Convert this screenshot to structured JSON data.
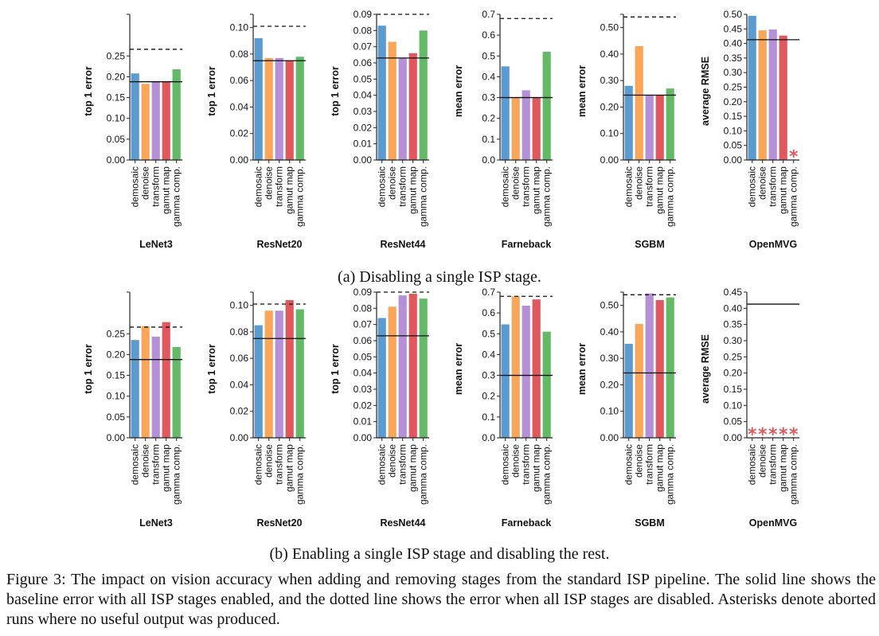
{
  "figure": {
    "caption_a": "(a) Disabling a single ISP stage.",
    "caption_b": "(b) Enabling a single ISP stage and disabling the rest.",
    "caption_main": "Figure 3: The impact on vision accuracy when adding and removing stages from the standard ISP pipeline. The solid line shows the baseline error with all ISP stages enabled, and the dotted line shows the error when all ISP stages are disabled. Asterisks denote aborted runs where no useful output was produced."
  },
  "colors": [
    "#5b9bd0",
    "#f9a65a",
    "#b590d6",
    "#e0585e",
    "#64b966"
  ],
  "categories": [
    "demosaic",
    "denoise",
    "transform",
    "gamut map",
    "gamma comp."
  ],
  "asterisk_symbol": "*",
  "chart_data": [
    {
      "row": "a",
      "type": "bar",
      "title": "LeNet3",
      "ylabel": "top 1 error",
      "ylim": [
        0,
        0.35
      ],
      "yticks": [
        "0.00",
        "0.05",
        "0.10",
        "0.15",
        "0.20",
        "0.25"
      ],
      "categories": [
        "demosaic",
        "denoise",
        "transform",
        "gamut map",
        "gamma comp."
      ],
      "values": [
        0.208,
        0.183,
        0.188,
        0.188,
        0.218
      ],
      "aborted": [
        false,
        false,
        false,
        false,
        false
      ],
      "baseline": 0.188,
      "all_disabled": 0.266
    },
    {
      "row": "a",
      "type": "bar",
      "title": "ResNet20",
      "ylabel": "top 1 error",
      "ylim": [
        0,
        0.11
      ],
      "yticks": [
        "0.00",
        "0.02",
        "0.04",
        "0.06",
        "0.08",
        "0.10"
      ],
      "categories": [
        "demosaic",
        "denoise",
        "transform",
        "gamut map",
        "gamma comp."
      ],
      "values": [
        0.092,
        0.077,
        0.077,
        0.075,
        0.078
      ],
      "aborted": [
        false,
        false,
        false,
        false,
        false
      ],
      "baseline": 0.075,
      "all_disabled": 0.101
    },
    {
      "row": "a",
      "type": "bar",
      "title": "ResNet44",
      "ylabel": "top 1 error",
      "ylim": [
        0,
        0.09
      ],
      "yticks": [
        "0.00",
        "0.01",
        "0.02",
        "0.03",
        "0.04",
        "0.05",
        "0.06",
        "0.07",
        "0.08",
        "0.09"
      ],
      "categories": [
        "demosaic",
        "denoise",
        "transform",
        "gamut map",
        "gamma comp."
      ],
      "values": [
        0.083,
        0.073,
        0.063,
        0.066,
        0.08
      ],
      "aborted": [
        false,
        false,
        false,
        false,
        false
      ],
      "baseline": 0.063,
      "all_disabled": 0.09
    },
    {
      "row": "a",
      "type": "bar",
      "title": "Farneback",
      "ylabel": "mean error",
      "ylim": [
        0,
        0.7
      ],
      "yticks": [
        "0.0",
        "0.1",
        "0.2",
        "0.3",
        "0.4",
        "0.5",
        "0.6",
        "0.7"
      ],
      "categories": [
        "demosaic",
        "denoise",
        "transform",
        "gamut map",
        "gamma comp."
      ],
      "values": [
        0.45,
        0.3,
        0.335,
        0.3,
        0.52
      ],
      "aborted": [
        false,
        false,
        false,
        false,
        false
      ],
      "baseline": 0.3,
      "all_disabled": 0.68
    },
    {
      "row": "a",
      "type": "bar",
      "title": "SGBM",
      "ylabel": "mean error",
      "ylim": [
        0,
        0.55
      ],
      "yticks": [
        "0.00",
        "0.10",
        "0.20",
        "0.30",
        "0.40",
        "0.50"
      ],
      "categories": [
        "demosaic",
        "denoise",
        "transform",
        "gamut map",
        "gamma comp."
      ],
      "values": [
        0.28,
        0.43,
        0.245,
        0.245,
        0.27
      ],
      "aborted": [
        false,
        false,
        false,
        false,
        false
      ],
      "baseline": 0.245,
      "all_disabled": 0.54
    },
    {
      "row": "a",
      "type": "bar",
      "title": "OpenMVG",
      "ylabel": "average RMSE",
      "ylim": [
        0,
        0.5
      ],
      "yticks": [
        "0.00",
        "0.05",
        "0.10",
        "0.15",
        "0.20",
        "0.25",
        "0.30",
        "0.35",
        "0.40",
        "0.45",
        "0.50"
      ],
      "categories": [
        "demosaic",
        "denoise",
        "transform",
        "gamut map",
        "gamma comp."
      ],
      "values": [
        0.495,
        0.445,
        0.448,
        0.427,
        0
      ],
      "aborted": [
        false,
        false,
        false,
        false,
        true
      ],
      "baseline": 0.413,
      "all_disabled": null
    },
    {
      "row": "b",
      "type": "bar",
      "title": "LeNet3",
      "ylabel": "top 1 error",
      "ylim": [
        0,
        0.35
      ],
      "yticks": [
        "0.00",
        "0.05",
        "0.10",
        "0.15",
        "0.20",
        "0.25"
      ],
      "categories": [
        "demosaic",
        "denoise",
        "transform",
        "gamut map",
        "gamma comp."
      ],
      "values": [
        0.235,
        0.268,
        0.243,
        0.278,
        0.218
      ],
      "aborted": [
        false,
        false,
        false,
        false,
        false
      ],
      "baseline": 0.188,
      "all_disabled": 0.266
    },
    {
      "row": "b",
      "type": "bar",
      "title": "ResNet20",
      "ylabel": "top 1 error",
      "ylim": [
        0,
        0.11
      ],
      "yticks": [
        "0.00",
        "0.02",
        "0.04",
        "0.06",
        "0.08",
        "0.10"
      ],
      "categories": [
        "demosaic",
        "denoise",
        "transform",
        "gamut map",
        "gamma comp."
      ],
      "values": [
        0.085,
        0.096,
        0.096,
        0.104,
        0.097
      ],
      "aborted": [
        false,
        false,
        false,
        false,
        false
      ],
      "baseline": 0.075,
      "all_disabled": 0.101
    },
    {
      "row": "b",
      "type": "bar",
      "title": "ResNet44",
      "ylabel": "top 1 error",
      "ylim": [
        0,
        0.09
      ],
      "yticks": [
        "0.00",
        "0.01",
        "0.02",
        "0.03",
        "0.04",
        "0.05",
        "0.06",
        "0.07",
        "0.08",
        "0.09"
      ],
      "categories": [
        "demosaic",
        "denoise",
        "transform",
        "gamut map",
        "gamma comp."
      ],
      "values": [
        0.074,
        0.081,
        0.088,
        0.089,
        0.086
      ],
      "aborted": [
        false,
        false,
        false,
        false,
        false
      ],
      "baseline": 0.063,
      "all_disabled": 0.09
    },
    {
      "row": "b",
      "type": "bar",
      "title": "Farneback",
      "ylabel": "mean error",
      "ylim": [
        0,
        0.7
      ],
      "yticks": [
        "0.0",
        "0.1",
        "0.2",
        "0.3",
        "0.4",
        "0.5",
        "0.6",
        "0.7"
      ],
      "categories": [
        "demosaic",
        "denoise",
        "transform",
        "gamut map",
        "gamma comp."
      ],
      "values": [
        0.545,
        0.68,
        0.635,
        0.665,
        0.51
      ],
      "aborted": [
        false,
        false,
        false,
        false,
        false
      ],
      "baseline": 0.3,
      "all_disabled": 0.68
    },
    {
      "row": "b",
      "type": "bar",
      "title": "SGBM",
      "ylabel": "mean error",
      "ylim": [
        0,
        0.55
      ],
      "yticks": [
        "0.00",
        "0.10",
        "0.20",
        "0.30",
        "0.40",
        "0.50"
      ],
      "categories": [
        "demosaic",
        "denoise",
        "transform",
        "gamut map",
        "gamma comp."
      ],
      "values": [
        0.355,
        0.43,
        0.545,
        0.52,
        0.53
      ],
      "aborted": [
        false,
        false,
        false,
        false,
        false
      ],
      "baseline": 0.245,
      "all_disabled": 0.54
    },
    {
      "row": "b",
      "type": "bar",
      "title": "OpenMVG",
      "ylabel": "average RMSE",
      "ylim": [
        0,
        0.45
      ],
      "yticks": [
        "0.00",
        "0.05",
        "0.10",
        "0.15",
        "0.20",
        "0.25",
        "0.30",
        "0.35",
        "0.40",
        "0.45"
      ],
      "categories": [
        "demosaic",
        "denoise",
        "transform",
        "gamut map",
        "gamma comp."
      ],
      "values": [
        0,
        0,
        0,
        0,
        0
      ],
      "aborted": [
        true,
        true,
        true,
        true,
        true
      ],
      "baseline": 0.413,
      "all_disabled": null
    }
  ]
}
